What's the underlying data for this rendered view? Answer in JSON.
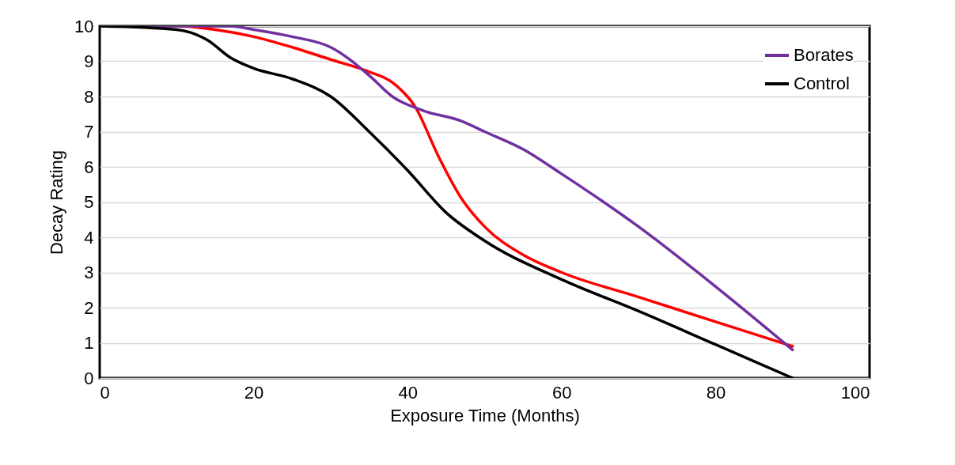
{
  "chart_data": {
    "type": "line",
    "xlabel": "Exposure Time (Months)",
    "ylabel": "Decay Rating",
    "xlim": [
      0,
      100
    ],
    "xticks": [
      0,
      20,
      40,
      60,
      80,
      100
    ],
    "ylim": [
      0,
      10
    ],
    "yticks": [
      0,
      1,
      2,
      3,
      4,
      5,
      6,
      7,
      8,
      9,
      10
    ],
    "grid": "y",
    "legend": "top right",
    "line_style": "solid",
    "marker": "none",
    "series": [
      {
        "color": "#ff0000",
        "x": [
          0,
          10,
          15,
          20,
          25,
          30,
          35,
          38,
          41,
          44,
          47,
          50,
          55,
          60,
          70,
          80,
          90
        ],
        "values": [
          10,
          10,
          9.9,
          9.7,
          9.4,
          9.05,
          8.7,
          8.4,
          7.7,
          6.3,
          5.1,
          4.3,
          3.5,
          3.0,
          2.3,
          1.6,
          0.9
        ]
      },
      {
        "name": "Borates",
        "color": "#7030a0",
        "x": [
          0,
          10,
          17,
          20,
          25,
          30,
          35,
          38,
          42,
          47,
          50,
          55,
          60,
          70,
          80,
          90
        ],
        "values": [
          10,
          10,
          10,
          9.9,
          9.7,
          9.4,
          8.6,
          8.0,
          7.6,
          7.3,
          7.0,
          6.5,
          5.8,
          4.3,
          2.6,
          0.8
        ]
      },
      {
        "name": "Control",
        "color": "#000000",
        "x": [
          0,
          10,
          14,
          17,
          20,
          25,
          30,
          35,
          40,
          45,
          50,
          60,
          70,
          80,
          90
        ],
        "values": [
          10,
          9.9,
          9.6,
          9.1,
          8.8,
          8.5,
          8.0,
          7.0,
          5.9,
          4.7,
          3.9,
          2.8,
          1.9,
          0.95,
          0
        ]
      }
    ]
  }
}
